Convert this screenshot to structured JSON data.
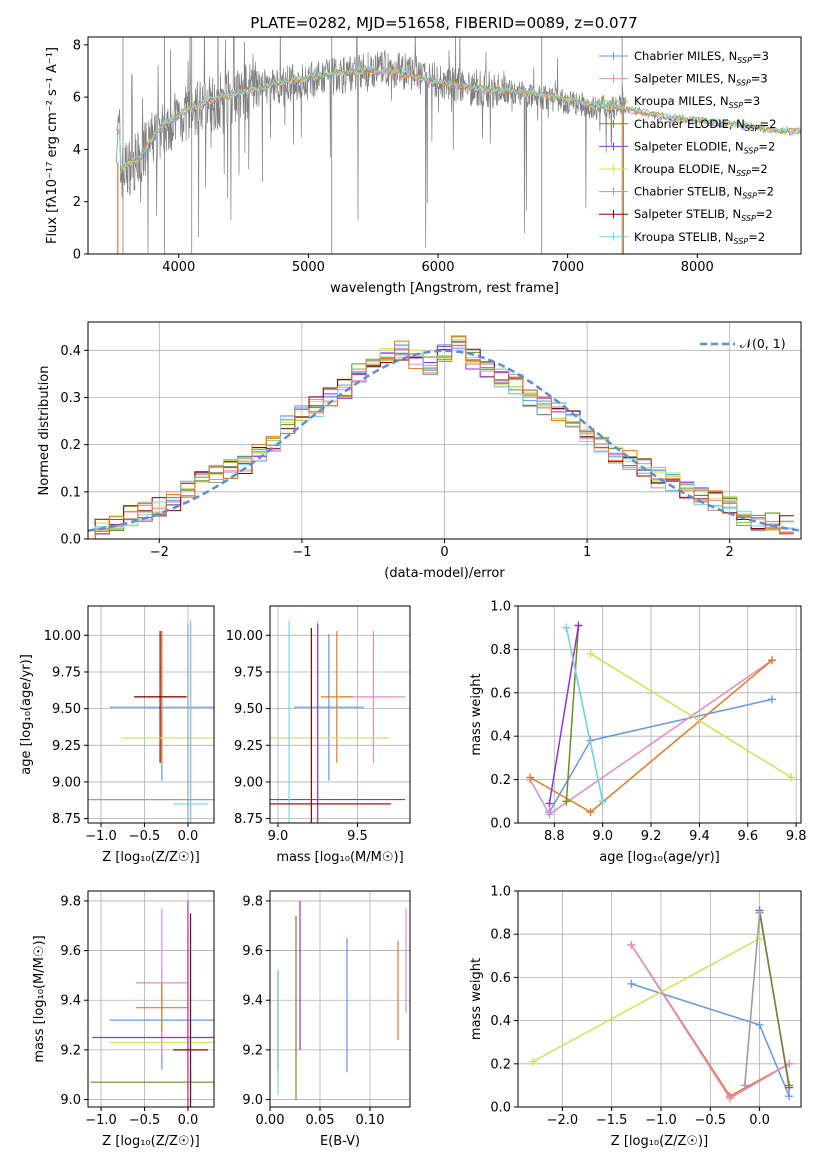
{
  "figure_title": "PLATE=0282, MJD=51658, FIBERID=0089, z=0.077",
  "colors": {
    "chabrier_miles": "#6495ED",
    "salpeter_miles": "#E88BC4",
    "kroupa_miles": "#9ACD32",
    "chabrier_elodie": "#6B8E23",
    "salpeter_elodie": "#9932CC",
    "kroupa_elodie": "#D4E157",
    "chabrier_stelib": "#A0A0A0",
    "salpeter_stelib": "#8B0000",
    "kroupa_stelib": "#76D7EA",
    "orange": "#E07B20",
    "spectrum_gray": "#808080"
  },
  "chart_data": [
    {
      "type": "line",
      "panel": "spectrum",
      "xlabel": "wavelength [Angstrom, rest frame]",
      "ylabel": "Flux [fλ10⁻¹⁷ erg cm⁻² s⁻¹ A⁻¹]",
      "xlim": [
        3300,
        8800
      ],
      "ylim": [
        0,
        8.3
      ],
      "xticks": [
        "4000",
        "5000",
        "6000",
        "7000",
        "8000"
      ],
      "yticks": [
        "0",
        "2",
        "4",
        "6",
        "8"
      ],
      "data_x": [
        3550,
        3600,
        3700,
        3800,
        3900,
        4000,
        4100,
        4200,
        4400,
        4600,
        4800,
        5000,
        5200,
        5400,
        5600,
        5800,
        6000,
        6200,
        6400,
        6600,
        6800,
        7000,
        7200,
        7400,
        7600,
        7800,
        8000,
        8200,
        8400,
        8600
      ],
      "data_y": [
        3.1,
        3.3,
        3.6,
        4.4,
        4.9,
        5.2,
        5.5,
        5.7,
        6.0,
        6.3,
        6.5,
        6.6,
        6.8,
        7.0,
        7.1,
        6.9,
        6.6,
        6.4,
        6.3,
        6.2,
        6.0,
        5.8,
        5.6,
        5.6,
        5.4,
        5.2,
        5.1,
        5.0,
        4.9,
        4.6
      ],
      "model_y": [
        3.2,
        3.4,
        3.7,
        4.5,
        5.0,
        5.3,
        5.6,
        5.8,
        6.1,
        6.3,
        6.6,
        6.7,
        6.9,
        7.0,
        7.0,
        6.8,
        6.6,
        6.4,
        6.3,
        6.2,
        6.1,
        5.9,
        5.7,
        5.6,
        5.4,
        5.2,
        5.1,
        5.0,
        4.9,
        4.7
      ],
      "legend": [
        "Chabrier MILES, N_SSP=3",
        "Salpeter MILES, N_SSP=3",
        "Kroupa MILES, N_SSP=3",
        "Chabrier ELODIE, N_SSP=2",
        "Salpeter ELODIE, N_SSP=2",
        "Kroupa ELODIE, N_SSP=2",
        "Chabrier STELIB, N_SSP=2",
        "Salpeter STELIB, N_SSP=2",
        "Kroupa STELIB, N_SSP=2"
      ]
    },
    {
      "type": "bar",
      "panel": "residual_histogram",
      "xlabel": "(data-model)/error",
      "ylabel": "Normed distribution",
      "xlim": [
        -2.5,
        2.5
      ],
      "ylim": [
        0,
        0.46
      ],
      "xticks": [
        "−2",
        "−1",
        "0",
        "1",
        "2"
      ],
      "yticks": [
        "0.0",
        "0.1",
        "0.2",
        "0.3",
        "0.4"
      ],
      "legend": "𝒩(0, 1)",
      "bin_centers": [
        -2.4,
        -2.3,
        -2.2,
        -2.1,
        -2.0,
        -1.9,
        -1.8,
        -1.7,
        -1.6,
        -1.5,
        -1.4,
        -1.3,
        -1.2,
        -1.1,
        -1.0,
        -0.9,
        -0.8,
        -0.7,
        -0.6,
        -0.5,
        -0.4,
        -0.3,
        -0.2,
        -0.1,
        0.0,
        0.1,
        0.2,
        0.3,
        0.4,
        0.5,
        0.6,
        0.7,
        0.8,
        0.9,
        1.0,
        1.1,
        1.2,
        1.3,
        1.4,
        1.5,
        1.6,
        1.7,
        1.8,
        1.9,
        2.0,
        2.1,
        2.2,
        2.3,
        2.4
      ],
      "counts": [
        0.03,
        0.04,
        0.05,
        0.06,
        0.07,
        0.08,
        0.11,
        0.13,
        0.14,
        0.15,
        0.16,
        0.18,
        0.2,
        0.24,
        0.27,
        0.28,
        0.3,
        0.32,
        0.35,
        0.38,
        0.39,
        0.4,
        0.38,
        0.37,
        0.39,
        0.41,
        0.38,
        0.36,
        0.34,
        0.33,
        0.3,
        0.28,
        0.27,
        0.25,
        0.22,
        0.2,
        0.18,
        0.17,
        0.15,
        0.13,
        0.12,
        0.1,
        0.09,
        0.08,
        0.07,
        0.05,
        0.04,
        0.04,
        0.03
      ]
    },
    {
      "type": "scatter",
      "panel": "age_vs_Z",
      "xlabel": "Z [log₁₀(Z/Z☉)]",
      "ylabel": "age  [log₁₀(age/yr)]",
      "xlim": [
        -1.15,
        0.3
      ],
      "ylim": [
        8.72,
        10.2
      ],
      "xticks": [
        "−1.0",
        "−0.5",
        "0.0"
      ],
      "yticks": [
        "8.75",
        "9.00",
        "9.25",
        "9.50",
        "9.75",
        "10.00"
      ],
      "points": [
        {
          "x": -0.3,
          "y": 9.51,
          "xerr": 0.6,
          "yerr": 0.5,
          "color": "chabrier_miles"
        },
        {
          "x": -0.3,
          "y": 9.58,
          "xerr": 0.3,
          "yerr": 0.45,
          "color": "orange"
        },
        {
          "x": -0.32,
          "y": 9.58,
          "xerr": 0.3,
          "yerr": 0.45,
          "color": "salpeter_stelib"
        },
        {
          "x": 0.03,
          "y": 9.3,
          "xerr": 0.8,
          "yerr": 0.8,
          "color": "kroupa_elodie"
        },
        {
          "x": 0.03,
          "y": 8.88,
          "xerr": 1.15,
          "yerr": 1.2,
          "color": "salpeter_elodie"
        },
        {
          "x": 0.03,
          "y": 8.85,
          "xerr": 0.2,
          "yerr": 1.25,
          "color": "kroupa_stelib"
        },
        {
          "x": 0.0,
          "y": 8.88,
          "xerr": 1.15,
          "yerr": 1.2,
          "color": "chabrier_stelib"
        }
      ]
    },
    {
      "type": "scatter",
      "panel": "age_vs_mass",
      "xlabel": "mass [log₁₀(M/M☉)]",
      "ylabel": "",
      "xlim": [
        8.95,
        9.83
      ],
      "ylim": [
        8.72,
        10.2
      ],
      "xticks": [
        "9.0",
        "9.5"
      ],
      "yticks": [
        "8.75",
        "9.00",
        "9.25",
        "9.50",
        "9.75",
        "10.00"
      ],
      "points": [
        {
          "x": 9.32,
          "y": 9.51,
          "xerr": 0.22,
          "yerr": 0.5,
          "color": "chabrier_miles"
        },
        {
          "x": 9.6,
          "y": 9.58,
          "xerr": 0.2,
          "yerr": 0.45,
          "color": "salpeter_miles"
        },
        {
          "x": 9.37,
          "y": 9.58,
          "xerr": 0.1,
          "yerr": 0.45,
          "color": "orange"
        },
        {
          "x": 9.25,
          "y": 9.3,
          "xerr": 0.45,
          "yerr": 0.8,
          "color": "kroupa_elodie"
        },
        {
          "x": 9.25,
          "y": 8.88,
          "xerr": 0.55,
          "yerr": 1.2,
          "color": "salpeter_elodie"
        },
        {
          "x": 9.07,
          "y": 8.85,
          "xerr": 0.05,
          "yerr": 1.25,
          "color": "kroupa_stelib"
        },
        {
          "x": 9.21,
          "y": 8.85,
          "xerr": 0.5,
          "yerr": 1.2,
          "color": "salpeter_stelib"
        }
      ]
    },
    {
      "type": "line",
      "panel": "mass_weight_vs_age",
      "xlabel": "age  [log₁₀(age/yr)]",
      "ylabel": "mass weight",
      "xlim": [
        8.65,
        9.82
      ],
      "ylim": [
        0,
        1
      ],
      "xticks": [
        "8.8",
        "9.0",
        "9.2",
        "9.4",
        "9.6",
        "9.8"
      ],
      "yticks": [
        "0.0",
        "0.2",
        "0.4",
        "0.6",
        "0.8",
        "1.0"
      ],
      "series": [
        {
          "color": "chabrier_miles",
          "x": [
            8.78,
            8.95,
            9.7
          ],
          "y": [
            0.05,
            0.38,
            0.57
          ]
        },
        {
          "color": "salpeter_miles",
          "x": [
            8.7,
            8.78,
            9.7
          ],
          "y": [
            0.2,
            0.04,
            0.75
          ]
        },
        {
          "color": "orange",
          "x": [
            8.7,
            8.95,
            9.7
          ],
          "y": [
            0.21,
            0.05,
            0.75
          ]
        },
        {
          "color": "chabrier_elodie",
          "x": [
            8.85,
            8.9
          ],
          "y": [
            0.1,
            0.91
          ]
        },
        {
          "color": "salpeter_elodie",
          "x": [
            8.78,
            8.9
          ],
          "y": [
            0.09,
            0.91
          ]
        },
        {
          "color": "kroupa_elodie",
          "x": [
            8.95,
            9.78
          ],
          "y": [
            0.78,
            0.21
          ]
        },
        {
          "color": "chabrier_stelib",
          "x": [
            8.85,
            9.0
          ],
          "y": [
            0.9,
            0.1
          ]
        },
        {
          "color": "kroupa_stelib",
          "x": [
            8.85,
            9.0
          ],
          "y": [
            0.9,
            0.1
          ]
        }
      ]
    },
    {
      "type": "scatter",
      "panel": "mass_vs_Z",
      "xlabel": "Z [log₁₀(Z/Z☉)]",
      "ylabel": "mass [log₁₀(M/M☉)]",
      "xlim": [
        -1.15,
        0.3
      ],
      "ylim": [
        8.97,
        9.84
      ],
      "xticks": [
        "−1.0",
        "−0.5",
        "0.0"
      ],
      "yticks": [
        "9.0",
        "9.2",
        "9.4",
        "9.6",
        "9.8"
      ],
      "points": [
        {
          "x": -0.3,
          "y": 9.32,
          "xerr": 0.6,
          "yerr": 0.2,
          "color": "chabrier_miles"
        },
        {
          "x": -0.3,
          "y": 9.47,
          "xerr": 0.3,
          "yerr": 0.3,
          "color": "salpeter_miles"
        },
        {
          "x": -0.3,
          "y": 9.37,
          "xerr": 0.3,
          "yerr": 0.1,
          "color": "orange"
        },
        {
          "x": 0.0,
          "y": 9.23,
          "xerr": 0.9,
          "yerr": 0.45,
          "color": "kroupa_elodie"
        },
        {
          "x": 0.0,
          "y": 9.25,
          "xerr": 1.1,
          "yerr": 0.55,
          "color": "salpeter_elodie"
        },
        {
          "x": 0.03,
          "y": 9.07,
          "xerr": 1.15,
          "yerr": 0.05,
          "color": "chabrier_elodie"
        },
        {
          "x": 0.03,
          "y": 9.2,
          "xerr": 0.2,
          "yerr": 0.55,
          "color": "salpeter_stelib"
        }
      ]
    },
    {
      "type": "scatter",
      "panel": "mass_vs_EBV",
      "xlabel": "E(B-V)",
      "ylabel": "",
      "xlim": [
        0.0,
        0.14
      ],
      "ylim": [
        8.97,
        9.84
      ],
      "xticks": [
        "0.00",
        "0.05",
        "0.10"
      ],
      "yticks": [
        "9.0",
        "9.2",
        "9.4",
        "9.6",
        "9.8"
      ],
      "points": [
        {
          "x": 0.008,
          "y": 9.32,
          "yerr": 0.2,
          "color": "salpeter_stelib"
        },
        {
          "x": 0.008,
          "y": 9.27,
          "yerr": 0.25,
          "color": "kroupa_stelib"
        },
        {
          "x": 0.026,
          "y": 9.37,
          "yerr": 0.37,
          "color": "chabrier_elodie"
        },
        {
          "x": 0.03,
          "y": 9.5,
          "yerr": 0.3,
          "color": "salpeter_elodie"
        },
        {
          "x": 0.077,
          "y": 9.38,
          "yerr": 0.27,
          "color": "chabrier_miles"
        },
        {
          "x": 0.128,
          "y": 9.44,
          "yerr": 0.2,
          "color": "orange"
        },
        {
          "x": 0.136,
          "y": 9.56,
          "yerr": 0.21,
          "color": "salpeter_miles"
        }
      ]
    },
    {
      "type": "line",
      "panel": "mass_weight_vs_Z",
      "xlabel": "Z [log₁₀(Z/Z☉)]",
      "ylabel": "mass weight",
      "xlim": [
        -2.45,
        0.42
      ],
      "ylim": [
        0,
        1
      ],
      "xticks": [
        "−2.0",
        "−1.5",
        "−1.0",
        "−0.5",
        "0.0"
      ],
      "yticks": [
        "0.0",
        "0.2",
        "0.4",
        "0.6",
        "0.8",
        "1.0"
      ],
      "series": [
        {
          "color": "chabrier_miles",
          "x": [
            -1.3,
            0.0,
            0.3
          ],
          "y": [
            0.57,
            0.38,
            0.05
          ]
        },
        {
          "color": "orange",
          "x": [
            -1.3,
            -0.3,
            0.3
          ],
          "y": [
            0.75,
            0.05,
            0.2
          ]
        },
        {
          "color": "salpeter_miles",
          "x": [
            -1.3,
            -0.3,
            0.3
          ],
          "y": [
            0.75,
            0.04,
            0.2
          ]
        },
        {
          "color": "kroupa_elodie",
          "x": [
            -2.3,
            0.0
          ],
          "y": [
            0.21,
            0.78
          ]
        },
        {
          "color": "salpeter_elodie",
          "x": [
            0.0,
            0.3
          ],
          "y": [
            0.91,
            0.09
          ]
        },
        {
          "color": "chabrier_elodie",
          "x": [
            0.0,
            0.3
          ],
          "y": [
            0.9,
            0.1
          ]
        },
        {
          "color": "kroupa_stelib",
          "x": [
            -0.15,
            0.0
          ],
          "y": [
            0.1,
            0.9
          ]
        },
        {
          "color": "chabrier_stelib",
          "x": [
            -0.15,
            0.0
          ],
          "y": [
            0.1,
            0.9
          ]
        }
      ]
    }
  ]
}
